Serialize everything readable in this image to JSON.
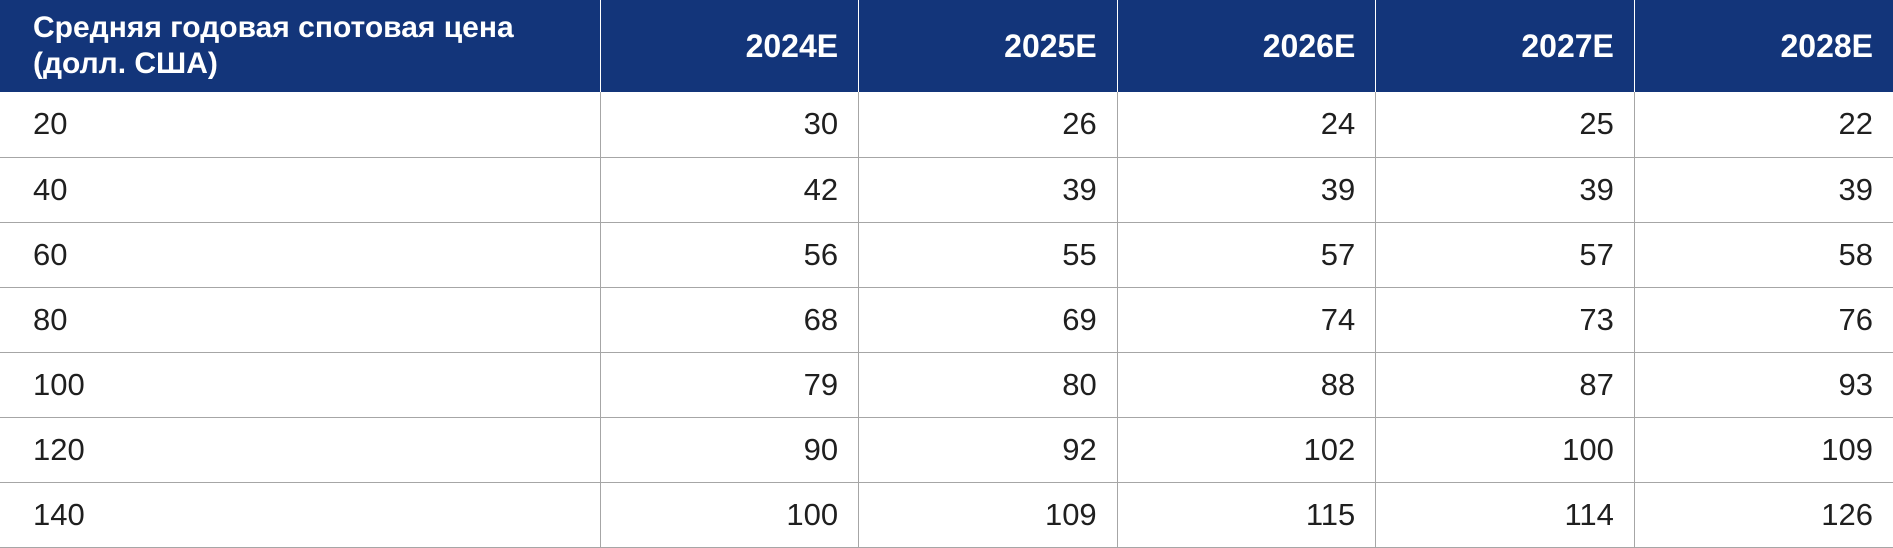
{
  "table": {
    "header_label": "Средняя годовая спотовая цена (долл. США)",
    "columns": [
      "2024E",
      "2025E",
      "2026E",
      "2027E",
      "2028E"
    ],
    "rows": [
      {
        "label": "20",
        "values": [
          "30",
          "26",
          "24",
          "25",
          "22"
        ]
      },
      {
        "label": "40",
        "values": [
          "42",
          "39",
          "39",
          "39",
          "39"
        ]
      },
      {
        "label": "60",
        "values": [
          "56",
          "55",
          "57",
          "57",
          "58"
        ]
      },
      {
        "label": "80",
        "values": [
          "68",
          "69",
          "74",
          "73",
          "76"
        ]
      },
      {
        "label": "100",
        "values": [
          "79",
          "80",
          "88",
          "87",
          "93"
        ]
      },
      {
        "label": "120",
        "values": [
          "90",
          "92",
          "102",
          "100",
          "109"
        ]
      },
      {
        "label": "140",
        "values": [
          "100",
          "109",
          "115",
          "114",
          "126"
        ]
      }
    ]
  }
}
